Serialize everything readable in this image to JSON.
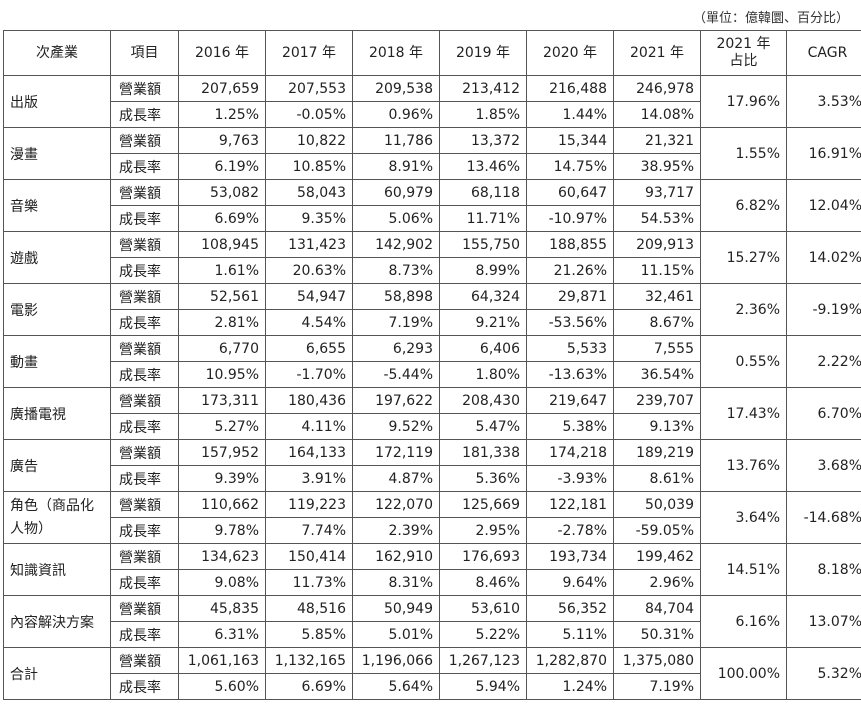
{
  "unit_note": "（單位：億韓圜、百分比）",
  "headers": [
    "次產業",
    "項目",
    "2016 年",
    "2017 年",
    "2018 年",
    "2019 年",
    "2020 年",
    "2021 年",
    "2021 年\n占比",
    "CAGR"
  ],
  "rows": [
    {
      "category": "出版",
      "revenue": [
        "207,659",
        "207,553",
        "209,538",
        "213,412",
        "216,488",
        "246,978"
      ],
      "growth": [
        "1.25%",
        "-0.05%",
        "0.96%",
        "1.85%",
        "1.44%",
        "14.08%"
      ],
      "share": "17.96%",
      "cagr": "3.53%"
    },
    {
      "category": "漫畫",
      "revenue": [
        "9,763",
        "10,822",
        "11,786",
        "13,372",
        "15,344",
        "21,321"
      ],
      "growth": [
        "6.19%",
        "10.85%",
        "8.91%",
        "13.46%",
        "14.75%",
        "38.95%"
      ],
      "share": "1.55%",
      "cagr": "16.91%"
    },
    {
      "category": "音樂",
      "revenue": [
        "53,082",
        "58,043",
        "60,979",
        "68,118",
        "60,647",
        "93,717"
      ],
      "growth": [
        "6.69%",
        "9.35%",
        "5.06%",
        "11.71%",
        "-10.97%",
        "54.53%"
      ],
      "share": "6.82%",
      "cagr": "12.04%"
    },
    {
      "category": "遊戲",
      "revenue": [
        "108,945",
        "131,423",
        "142,902",
        "155,750",
        "188,855",
        "209,913"
      ],
      "growth": [
        "1.61%",
        "20.63%",
        "8.73%",
        "8.99%",
        "21.26%",
        "11.15%"
      ],
      "share": "15.27%",
      "cagr": "14.02%"
    },
    {
      "category": "電影",
      "revenue": [
        "52,561",
        "54,947",
        "58,898",
        "64,324",
        "29,871",
        "32,461"
      ],
      "growth": [
        "2.81%",
        "4.54%",
        "7.19%",
        "9.21%",
        "-53.56%",
        "8.67%"
      ],
      "share": "2.36%",
      "cagr": "-9.19%"
    },
    {
      "category": "動畫",
      "revenue": [
        "6,770",
        "6,655",
        "6,293",
        "6,406",
        "5,533",
        "7,555"
      ],
      "growth": [
        "10.95%",
        "-1.70%",
        "-5.44%",
        "1.80%",
        "-13.63%",
        "36.54%"
      ],
      "share": "0.55%",
      "cagr": "2.22%"
    },
    {
      "category": "廣播電視",
      "revenue": [
        "173,311",
        "180,436",
        "197,622",
        "208,430",
        "219,647",
        "239,707"
      ],
      "growth": [
        "5.27%",
        "4.11%",
        "9.52%",
        "5.47%",
        "5.38%",
        "9.13%"
      ],
      "share": "17.43%",
      "cagr": "6.70%"
    },
    {
      "category": "廣告",
      "revenue": [
        "157,952",
        "164,133",
        "172,119",
        "181,338",
        "174,218",
        "189,219"
      ],
      "growth": [
        "9.39%",
        "3.91%",
        "4.87%",
        "5.36%",
        "-3.93%",
        "8.61%"
      ],
      "share": "13.76%",
      "cagr": "3.68%"
    },
    {
      "category": "角色（商品化人物）",
      "revenue": [
        "110,662",
        "119,223",
        "122,070",
        "125,669",
        "122,181",
        "50,039"
      ],
      "growth": [
        "9.78%",
        "7.74%",
        "2.39%",
        "2.95%",
        "-2.78%",
        "-59.05%"
      ],
      "share": "3.64%",
      "cagr": "-14.68%"
    },
    {
      "category": "知識資訊",
      "revenue": [
        "134,623",
        "150,414",
        "162,910",
        "176,693",
        "193,734",
        "199,462"
      ],
      "growth": [
        "9.08%",
        "11.73%",
        "8.31%",
        "8.46%",
        "9.64%",
        "2.96%"
      ],
      "share": "14.51%",
      "cagr": "8.18%"
    },
    {
      "category": "內容解決方案",
      "revenue": [
        "45,835",
        "48,516",
        "50,949",
        "53,610",
        "56,352",
        "84,704"
      ],
      "growth": [
        "6.31%",
        "5.85%",
        "5.01%",
        "5.22%",
        "5.11%",
        "50.31%"
      ],
      "share": "6.16%",
      "cagr": "13.07%"
    },
    {
      "category": "合計",
      "revenue": [
        "1,061,163",
        "1,132,165",
        "1,196,066",
        "1,267,123",
        "1,282,870",
        "1,375,080"
      ],
      "growth": [
        "5.60%",
        "6.69%",
        "5.64%",
        "5.94%",
        "1.24%",
        "7.19%"
      ],
      "share": "100.00%",
      "cagr": "5.32%"
    }
  ],
  "item_labels": {
    "revenue": "營業額",
    "growth": "成長率"
  }
}
